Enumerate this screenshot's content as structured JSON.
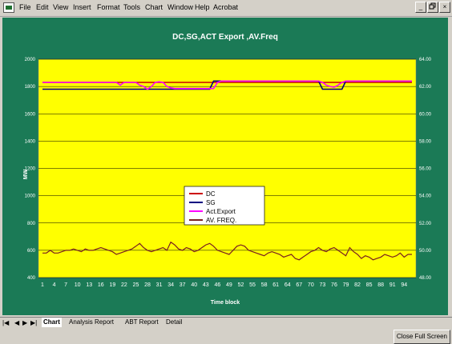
{
  "menubar": {
    "items": [
      "File",
      "Edit",
      "View",
      "Insert",
      "Format",
      "Tools",
      "Chart",
      "Window",
      "Help",
      "Acrobat"
    ],
    "window_buttons": [
      "_",
      "×"
    ]
  },
  "chart_data": {
    "type": "line",
    "title": "DC,SG,ACT Export ,AV.Freq",
    "xlabel": "Time block",
    "ylabel": "MW",
    "ylim": [
      400,
      2000
    ],
    "y2lim": [
      48.0,
      64.0
    ],
    "yticks": [
      "400",
      "600",
      "800",
      "1000",
      "1200",
      "1400",
      "1600",
      "1800",
      "2000"
    ],
    "y2ticks": [
      "48.00",
      "50.00",
      "52.00",
      "54.00",
      "56.00",
      "58.00",
      "60.00",
      "62.00",
      "64.00"
    ],
    "xticks": [
      "1",
      "4",
      "7",
      "10",
      "13",
      "16",
      "19",
      "22",
      "25",
      "28",
      "31",
      "34",
      "37",
      "40",
      "43",
      "46",
      "49",
      "52",
      "55",
      "58",
      "61",
      "64",
      "67",
      "70",
      "73",
      "76",
      "79",
      "82",
      "85",
      "88",
      "91",
      "94"
    ],
    "legend_position": "center",
    "plot_bg": "#ffff00",
    "series": [
      {
        "name": "DC",
        "color": "#cc0000",
        "axis": "left",
        "values": [
          1830,
          1830,
          1830,
          1830,
          1830,
          1830,
          1830,
          1830,
          1830,
          1830,
          1830,
          1830,
          1830,
          1830,
          1830,
          1830,
          1830,
          1830,
          1830,
          1830,
          1830,
          1830,
          1830,
          1830,
          1830,
          1830,
          1830,
          1830,
          1830,
          1830,
          1830,
          1830,
          1830,
          1830,
          1830,
          1830,
          1830,
          1830,
          1830,
          1830,
          1830,
          1830,
          1830,
          1830,
          1830,
          1830,
          1830,
          1830,
          1830,
          1830,
          1830,
          1830,
          1830,
          1830,
          1830,
          1830,
          1830,
          1830,
          1830,
          1830,
          1830,
          1830,
          1830,
          1830,
          1830,
          1830,
          1830,
          1830,
          1830,
          1830,
          1830,
          1830,
          1830,
          1830,
          1830,
          1830,
          1830,
          1830,
          1830,
          1830,
          1830,
          1830,
          1830,
          1830,
          1830,
          1830,
          1830,
          1830,
          1830,
          1830,
          1830,
          1830,
          1830,
          1830,
          1830,
          1830
        ]
      },
      {
        "name": "SG",
        "color": "#000080",
        "axis": "left",
        "values": [
          1780,
          1780,
          1780,
          1780,
          1780,
          1780,
          1780,
          1780,
          1780,
          1780,
          1780,
          1780,
          1780,
          1780,
          1780,
          1780,
          1780,
          1780,
          1780,
          1780,
          1780,
          1780,
          1780,
          1780,
          1780,
          1780,
          1780,
          1780,
          1780,
          1780,
          1780,
          1780,
          1780,
          1780,
          1780,
          1780,
          1780,
          1780,
          1780,
          1780,
          1780,
          1780,
          1780,
          1780,
          1840,
          1840,
          1840,
          1840,
          1840,
          1840,
          1840,
          1840,
          1840,
          1840,
          1840,
          1840,
          1840,
          1840,
          1840,
          1840,
          1840,
          1840,
          1840,
          1840,
          1840,
          1840,
          1840,
          1840,
          1840,
          1840,
          1840,
          1840,
          1780,
          1780,
          1780,
          1780,
          1780,
          1780,
          1840,
          1840,
          1840,
          1840,
          1840,
          1840,
          1840,
          1840,
          1840,
          1840,
          1840,
          1840,
          1840,
          1840,
          1840,
          1840,
          1840,
          1840
        ]
      },
      {
        "name": "Act.Export",
        "color": "#ff00ff",
        "axis": "left",
        "values": [
          1830,
          1830,
          1830,
          1830,
          1830,
          1830,
          1830,
          1830,
          1830,
          1830,
          1830,
          1830,
          1830,
          1830,
          1830,
          1830,
          1830,
          1830,
          1830,
          1830,
          1810,
          1830,
          1830,
          1830,
          1830,
          1810,
          1800,
          1780,
          1800,
          1830,
          1835,
          1830,
          1800,
          1790,
          1785,
          1785,
          1785,
          1785,
          1785,
          1785,
          1785,
          1785,
          1785,
          1785,
          1785,
          1830,
          1840,
          1840,
          1840,
          1840,
          1840,
          1840,
          1840,
          1840,
          1840,
          1840,
          1840,
          1840,
          1840,
          1840,
          1840,
          1840,
          1840,
          1840,
          1840,
          1840,
          1840,
          1840,
          1840,
          1840,
          1840,
          1840,
          1830,
          1810,
          1800,
          1795,
          1810,
          1830,
          1840,
          1840,
          1840,
          1840,
          1840,
          1840,
          1840,
          1840,
          1840,
          1840,
          1840,
          1840,
          1840,
          1840,
          1840,
          1840,
          1840,
          1840
        ]
      },
      {
        "name": "AV. FREQ.",
        "color": "#7a2020",
        "axis": "right",
        "values": [
          49.8,
          49.8,
          50.0,
          49.8,
          49.8,
          49.9,
          50.0,
          50.0,
          50.1,
          50.0,
          49.9,
          50.1,
          50.0,
          50.0,
          50.1,
          50.2,
          50.1,
          50.0,
          49.9,
          49.7,
          49.8,
          49.9,
          50.0,
          50.1,
          50.3,
          50.5,
          50.2,
          50.0,
          49.9,
          50.0,
          50.1,
          50.2,
          50.0,
          50.6,
          50.4,
          50.1,
          50.0,
          50.2,
          50.1,
          49.9,
          50.0,
          50.2,
          50.4,
          50.5,
          50.3,
          50.0,
          49.9,
          49.8,
          49.7,
          50.0,
          50.3,
          50.4,
          50.3,
          50.0,
          49.9,
          49.8,
          49.7,
          49.6,
          49.8,
          49.9,
          49.8,
          49.7,
          49.5,
          49.6,
          49.7,
          49.4,
          49.3,
          49.5,
          49.7,
          49.9,
          50.0,
          50.2,
          50.0,
          49.9,
          50.1,
          50.2,
          50.0,
          49.8,
          49.6,
          50.2,
          49.9,
          49.7,
          49.4,
          49.6,
          49.5,
          49.3,
          49.4,
          49.5,
          49.7,
          49.6,
          49.5,
          49.6,
          49.8,
          49.5,
          49.7,
          49.7
        ]
      }
    ]
  },
  "sheet_tabs": {
    "nav": [
      "|◀",
      "◀",
      "▶",
      "▶|"
    ],
    "tabs": [
      "Chart",
      "Analysis Report",
      "ABT Report",
      "Detail"
    ],
    "active": "Chart"
  },
  "status": {
    "close_fullscreen": "Close Full Screen"
  }
}
